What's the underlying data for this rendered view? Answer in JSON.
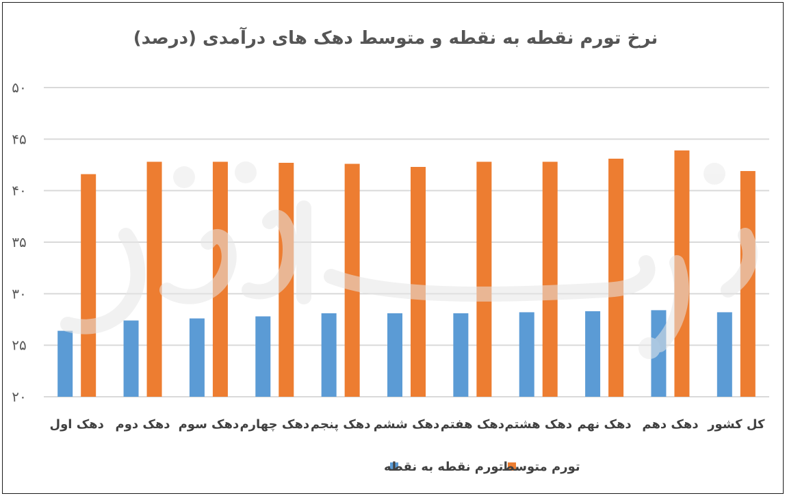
{
  "chart_data": {
    "type": "bar",
    "title": "نرخ تورم نقطه به نقطه و متوسط دهک های درآمدی (درصد)",
    "xlabel": "",
    "ylabel": "",
    "ylim": [
      20,
      50
    ],
    "yticks": [
      {
        "value": 50,
        "label": "۵۰"
      },
      {
        "value": 45,
        "label": "۴۵"
      },
      {
        "value": 40,
        "label": "۴۰"
      },
      {
        "value": 35,
        "label": "۳۵"
      },
      {
        "value": 30,
        "label": "۳۰"
      },
      {
        "value": 25,
        "label": "۲۵"
      },
      {
        "value": 20,
        "label": "۲۰"
      }
    ],
    "grid": true,
    "legend_position": "bottom",
    "categories": [
      "دهک اول",
      "دهک دوم",
      "دهک سوم",
      "دهک چهارم",
      "دهک پنجم",
      "دهک ششم",
      "دهک هفتم",
      "دهک هشتم",
      "دهک نهم",
      "دهک دهم",
      "کل کشور"
    ],
    "series": [
      {
        "name": "تورم نقطه به نقطه",
        "color": "#5b9bd5",
        "values": [
          26.4,
          27.4,
          27.6,
          27.8,
          28.1,
          28.1,
          28.1,
          28.2,
          28.3,
          28.4,
          28.2
        ]
      },
      {
        "name": "تورم متوسط",
        "color": "#ed7d31",
        "values": [
          41.6,
          42.8,
          42.8,
          42.7,
          42.6,
          42.3,
          42.8,
          42.8,
          43.1,
          43.9,
          41.9
        ]
      }
    ]
  },
  "watermark": {
    "text": "دنیای اقتصاد"
  }
}
